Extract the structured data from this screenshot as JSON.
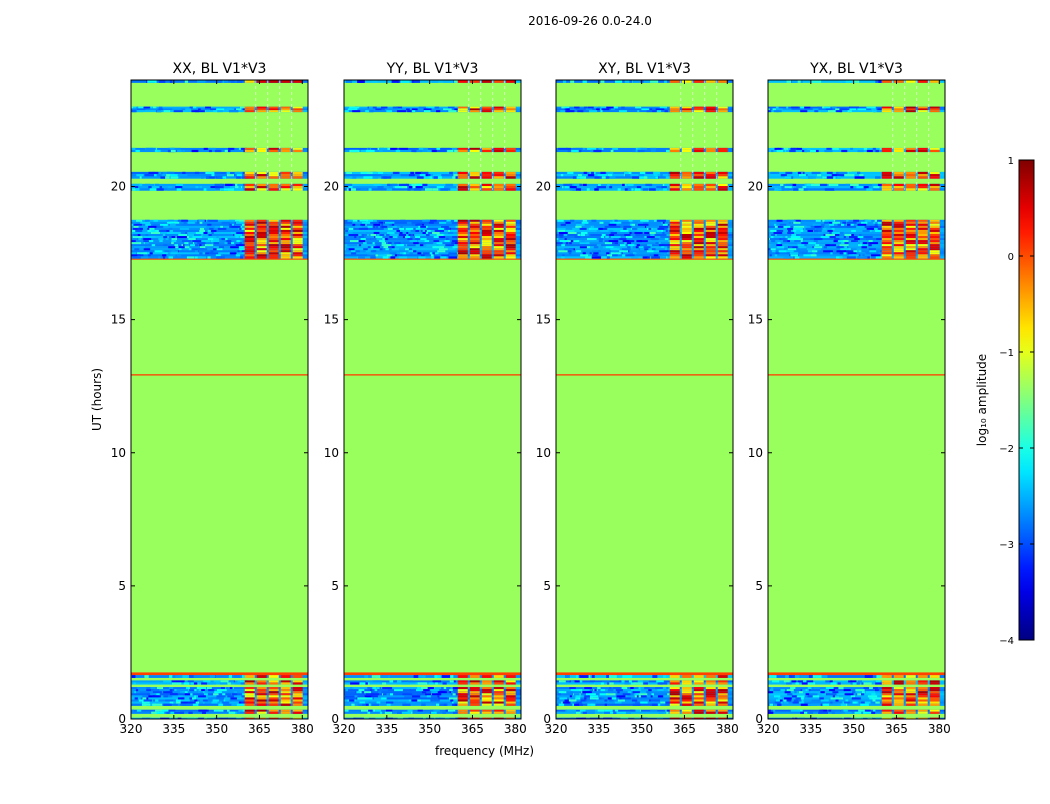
{
  "figure_title": "2016-09-26 0.0-24.0",
  "chart_data": [
    {
      "type": "heatmap",
      "title": "XX, BL V1*V3",
      "xlabel": "",
      "ylabel": "UT (hours)",
      "xlim": [
        320,
        382
      ],
      "ylim": [
        0,
        24
      ],
      "xticks": [
        320,
        335,
        350,
        365,
        380
      ],
      "yticks": [
        0,
        5,
        10,
        15,
        20
      ],
      "rfi_band_mhz": [
        359.5,
        380.5
      ]
    },
    {
      "type": "heatmap",
      "title": "YY, BL V1*V3",
      "xlabel": "frequency (MHz)",
      "ylabel": "",
      "xlim": [
        320,
        382
      ],
      "ylim": [
        0,
        24
      ],
      "xticks": [
        320,
        335,
        350,
        365,
        380
      ],
      "yticks": [
        0,
        5,
        10,
        15,
        20
      ],
      "rfi_band_mhz": [
        359.5,
        380.5
      ]
    },
    {
      "type": "heatmap",
      "title": "XY, BL V1*V3",
      "xlabel": "",
      "ylabel": "",
      "xlim": [
        320,
        382
      ],
      "ylim": [
        0,
        24
      ],
      "xticks": [
        320,
        335,
        350,
        365,
        380
      ],
      "yticks": [
        0,
        5,
        10,
        15,
        20
      ],
      "rfi_band_mhz": [
        359.5,
        380.5
      ]
    },
    {
      "type": "heatmap",
      "title": "YX, BL V1*V3",
      "xlabel": "",
      "ylabel": "",
      "xlim": [
        320,
        382
      ],
      "ylim": [
        0,
        24
      ],
      "xticks": [
        320,
        335,
        350,
        365,
        380
      ],
      "yticks": [
        0,
        5,
        10,
        15,
        20
      ],
      "rfi_band_mhz": [
        359.5,
        380.5
      ]
    }
  ],
  "heatmap_rows": [
    {
      "t0": 0.0,
      "t1": 0.05,
      "level": "low"
    },
    {
      "t0": 0.05,
      "t1": 0.2,
      "level": "flag"
    },
    {
      "t0": 0.2,
      "t1": 0.35,
      "level": "low"
    },
    {
      "t0": 0.35,
      "t1": 0.5,
      "level": "flag"
    },
    {
      "t0": 0.5,
      "t1": 1.2,
      "level": "low"
    },
    {
      "t0": 1.2,
      "t1": 1.3,
      "level": "flag"
    },
    {
      "t0": 1.3,
      "t1": 1.45,
      "level": "low"
    },
    {
      "t0": 1.45,
      "t1": 1.55,
      "level": "flag"
    },
    {
      "t0": 1.55,
      "t1": 1.65,
      "level": "low"
    },
    {
      "t0": 1.65,
      "t1": 1.75,
      "level": "red"
    },
    {
      "t0": 1.75,
      "t1": 12.9,
      "level": "flag"
    },
    {
      "t0": 12.9,
      "t1": 12.95,
      "level": "red"
    },
    {
      "t0": 12.95,
      "t1": 17.25,
      "level": "flag"
    },
    {
      "t0": 17.25,
      "t1": 17.3,
      "level": "red"
    },
    {
      "t0": 17.3,
      "t1": 18.75,
      "level": "low"
    },
    {
      "t0": 18.75,
      "t1": 19.85,
      "level": "flag"
    },
    {
      "t0": 19.85,
      "t1": 20.1,
      "level": "low"
    },
    {
      "t0": 20.1,
      "t1": 20.3,
      "level": "flag"
    },
    {
      "t0": 20.3,
      "t1": 20.55,
      "level": "low"
    },
    {
      "t0": 20.55,
      "t1": 21.3,
      "level": "flag"
    },
    {
      "t0": 21.3,
      "t1": 21.45,
      "level": "low"
    },
    {
      "t0": 21.45,
      "t1": 22.8,
      "level": "flag"
    },
    {
      "t0": 22.8,
      "t1": 23.0,
      "level": "low"
    },
    {
      "t0": 23.0,
      "t1": 23.9,
      "level": "flag"
    },
    {
      "t0": 23.9,
      "t1": 24.0,
      "level": "low"
    }
  ],
  "colorbar": {
    "label": "log₁₀ amplitude",
    "range": [
      -4,
      1
    ],
    "ticks": [
      1,
      0,
      -1,
      -2,
      -3,
      -4
    ],
    "tick_labels": [
      "1",
      "0",
      "−1",
      "−2",
      "−3",
      "−4"
    ],
    "colormap": "jet",
    "flagged_value": -1.3
  },
  "colors": {
    "flagged": "#99ff5c",
    "rfi_red": "#ff4000",
    "low_dark": "#1b4fe0",
    "low_light": "#2fd4ff"
  }
}
